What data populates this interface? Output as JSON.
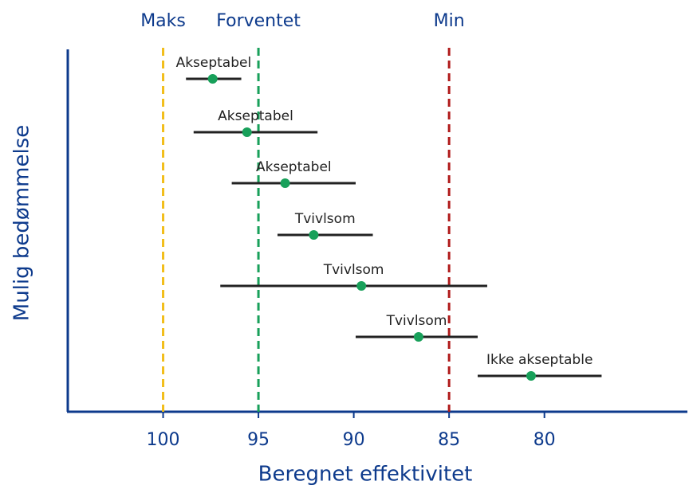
{
  "chart_data": {
    "type": "interval",
    "xlabel": "Beregnet effektivitet",
    "ylabel": "Mulig bedømmelse",
    "xlim": [
      105,
      72.5
    ],
    "xticks": [
      100,
      95,
      90,
      85,
      80
    ],
    "reference_lines": [
      {
        "name": "Maks",
        "value": 100,
        "color": "#f2be1a"
      },
      {
        "name": "Forventet",
        "value": 95,
        "color": "#18a05a"
      },
      {
        "name": "Min",
        "value": 85,
        "color": "#b01a1a"
      }
    ],
    "labels": [
      "Akseptabel",
      "Akseptabel",
      "Akseptabel",
      "Tvivlsom",
      "Tvivlsom",
      "Tvivlsom",
      "Ikke akseptable"
    ],
    "values": [
      97.4,
      95.6,
      93.6,
      92.1,
      89.6,
      86.6,
      80.7
    ],
    "lows": [
      98.8,
      98.4,
      96.4,
      94.0,
      97.0,
      89.9,
      83.5
    ],
    "highs": [
      95.9,
      91.9,
      89.9,
      89.0,
      83.0,
      83.5,
      77.0
    ],
    "color": "#18a05a"
  }
}
